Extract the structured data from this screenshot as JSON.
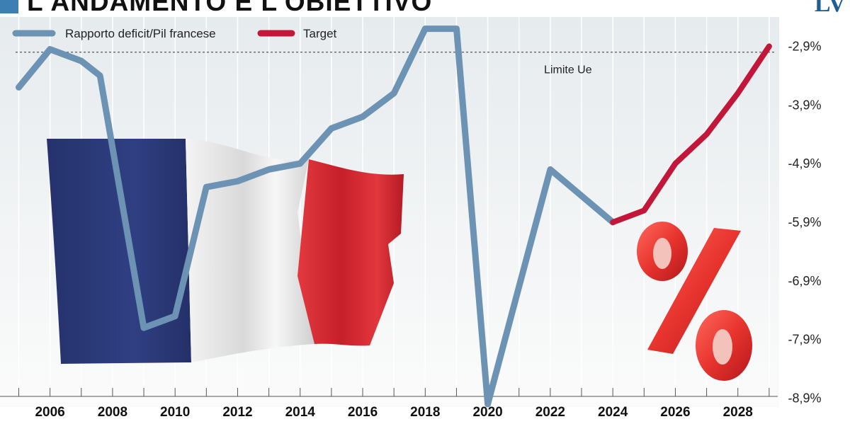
{
  "header": {
    "title": "L'ANDAMENTO E L'OBIETTIVO",
    "logo": "LV"
  },
  "colors": {
    "actual": "#6c93b3",
    "target": "#c3173a",
    "accent": "#3b7fb3",
    "flag_blue": "#2b3a78",
    "flag_white": "#ececec",
    "flag_red": "#d42a34",
    "percent_red": "#e43a3a"
  },
  "chart_data": {
    "type": "line",
    "title": "L'ANDAMENTO E L'OBIETTIVO",
    "xlabel": "",
    "ylabel": "",
    "xlim": [
      2004.4,
      2030.0
    ],
    "ylim": [
      -9.05,
      -2.4
    ],
    "x_ticks": [
      2006,
      2008,
      2010,
      2012,
      2014,
      2016,
      2018,
      2020,
      2022,
      2024,
      2026,
      2028
    ],
    "y_ticks": [
      -2.9,
      -3.9,
      -4.9,
      -5.9,
      -6.9,
      -7.9,
      -8.9
    ],
    "y_tick_labels": [
      "-2,9%",
      "-3,9%",
      "-4,9%",
      "-5,9%",
      "-6,9%",
      "-7,9%",
      "-8,9%"
    ],
    "grid": "vertical",
    "legend_position": "top-left",
    "series": [
      {
        "name": "Rapporto deficit/Pil francese",
        "color": "#6c93b3",
        "points": [
          [
            2005,
            -3.6
          ],
          [
            2006,
            -2.95
          ],
          [
            2007,
            -3.15
          ],
          [
            2007.6,
            -3.4
          ],
          [
            2009,
            -7.7
          ],
          [
            2010,
            -7.5
          ],
          [
            2011,
            -5.3
          ],
          [
            2012,
            -5.2
          ],
          [
            2013,
            -5.0
          ],
          [
            2014,
            -4.9
          ],
          [
            2015,
            -4.3
          ],
          [
            2016,
            -4.1
          ],
          [
            2017,
            -3.7
          ],
          [
            2018,
            -2.6
          ],
          [
            2019,
            -2.6
          ],
          [
            2020,
            -9.0
          ],
          [
            2021,
            -7.0
          ],
          [
            2022,
            -5.0
          ],
          [
            2023,
            -5.45
          ],
          [
            2024,
            -5.9
          ]
        ]
      },
      {
        "name": "Target",
        "color": "#c3173a",
        "points": [
          [
            2024,
            -5.9
          ],
          [
            2025,
            -5.7
          ],
          [
            2026,
            -4.9
          ],
          [
            2027,
            -4.4
          ],
          [
            2028,
            -3.7
          ],
          [
            2029,
            -2.9
          ]
        ]
      }
    ],
    "annotations": [
      {
        "text": "Limite Ue",
        "x": 2021.8,
        "y": -3.36
      }
    ],
    "reference_lines": [
      {
        "y": -3.0,
        "style": "dashed"
      }
    ]
  }
}
